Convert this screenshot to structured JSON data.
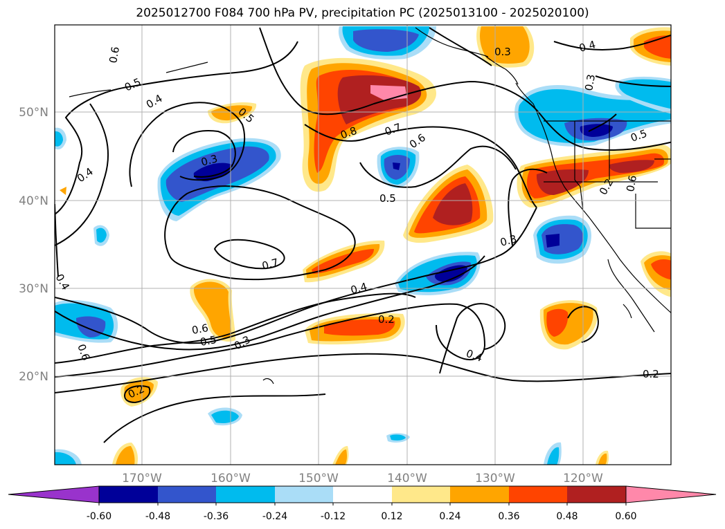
{
  "title": "2025012700 F084 700 hPa PV, precipitation PC (2025013100 - 2025020100)",
  "map": {
    "lat_labels": [
      "50°N",
      "40°N",
      "30°N",
      "20°N"
    ],
    "lon_labels": [
      "170°W",
      "160°W",
      "150°W",
      "140°W",
      "130°W",
      "120°W"
    ],
    "extent": {
      "lon_min": -179.6,
      "lon_max": -109.7,
      "lat_min": 10,
      "lat_max": 59.8
    },
    "pv_contour_labels": [
      "0.6",
      "0.5",
      "0.4",
      "0.4",
      "0.3",
      "0.5",
      "0.8",
      "0.7",
      "0.6",
      "0.5",
      "0.3",
      "0.4",
      "0.5",
      "0.3",
      "0.3",
      "0.2",
      "0.6",
      "0.7",
      "0.4",
      "0.2",
      "0.4",
      "0.4",
      "0.6",
      "0.6",
      "0.5",
      "0.3",
      "0.2",
      "0.2"
    ],
    "gridline_color": "#b0b0b0",
    "coastline_color": "#000000"
  },
  "colorbar": {
    "ticks": [
      "-0.60",
      "-0.48",
      "-0.36",
      "-0.24",
      "-0.12",
      "0.12",
      "0.24",
      "0.36",
      "0.48",
      "0.60"
    ],
    "bins": [
      {
        "range": "< -0.60",
        "color": "#9933cc"
      },
      {
        "range": "-0.60 to -0.48",
        "color": "#000099"
      },
      {
        "range": "-0.48 to -0.36",
        "color": "#3355cc"
      },
      {
        "range": "-0.36 to -0.24",
        "color": "#00bbee"
      },
      {
        "range": "-0.24 to -0.12",
        "color": "#aaddf7"
      },
      {
        "range": "-0.12 to 0.12",
        "color": "#ffffff"
      },
      {
        "range": "0.12 to 0.24",
        "color": "#ffe88a"
      },
      {
        "range": "0.24 to 0.36",
        "color": "#ffa500"
      },
      {
        "range": "0.36 to 0.48",
        "color": "#ff4400"
      },
      {
        "range": "0.48 to 0.60",
        "color": "#b02020"
      },
      {
        "range": "> 0.60",
        "color": "#ff88aa"
      }
    ]
  }
}
